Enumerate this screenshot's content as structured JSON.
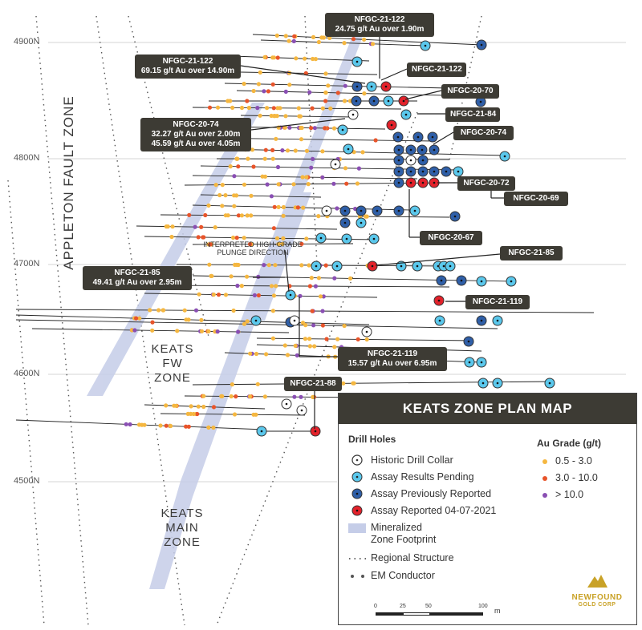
{
  "grid_labels": [
    "4900N",
    "4800N",
    "4700N",
    "4600N",
    "4500N"
  ],
  "zones": {
    "fault": "APPLETON FAULT ZONE",
    "fw": [
      "KEATS",
      "FW",
      "ZONE"
    ],
    "main": [
      "KEATS",
      "MAIN",
      "ZONE"
    ],
    "plunge": [
      "INTERPRETED HIGH-GRADE",
      "PLUNGE DIRECTION"
    ]
  },
  "callouts": [
    {
      "lines": [
        "NFGC-21-122",
        "24.75 g/t Au over 1.90m"
      ]
    },
    {
      "lines": [
        "NFGC-21-122",
        "69.15  g/t Au over 14.90m"
      ]
    },
    {
      "lines": [
        "NFGC-21-122"
      ]
    },
    {
      "lines": [
        "NFGC-20-70"
      ]
    },
    {
      "lines": [
        "NFGC-21-84"
      ]
    },
    {
      "lines": [
        "NFGC-20-74",
        "32.27 g/t Au over 2.00m",
        "45.59 g/t Au over 4.05m"
      ]
    },
    {
      "lines": [
        "NFGC-20-74"
      ]
    },
    {
      "lines": [
        "NFGC-20-72"
      ]
    },
    {
      "lines": [
        "NFGC-20-69"
      ]
    },
    {
      "lines": [
        "NFGC-20-67"
      ]
    },
    {
      "lines": [
        "NFGC-21-85"
      ]
    },
    {
      "lines": [
        "NFGC-21-85",
        "49.41 g/t Au over 2.95m"
      ]
    },
    {
      "lines": [
        "NFGC-21-119"
      ]
    },
    {
      "lines": [
        "NFGC-21-119",
        "15.57 g/t Au over 6.95m"
      ]
    },
    {
      "lines": [
        "NFGC-21-88"
      ]
    }
  ],
  "legend": {
    "title": "KEATS ZONE PLAN MAP",
    "drill_holes_heading": "Drill Holes",
    "grade_heading": "Au Grade (g/t)",
    "drill_items": [
      "Historic Drill Collar",
      "Assay Results Pending",
      "Assay Previously Reported",
      "Assay Reported 04-07-2021"
    ],
    "footprint": [
      "Mineralized",
      "Zone Footprint"
    ],
    "regional": "Regional Structure",
    "em": "EM Conductor",
    "grades": [
      "0.5 - 3.0",
      "3.0 - 10.0",
      "> 10.0"
    ],
    "scale_ticks": [
      "0",
      "25",
      "50",
      "100"
    ],
    "scale_unit": "m",
    "logo": [
      "NEWFOUND",
      "GOLD CORP"
    ]
  },
  "colors": {
    "callout_bg": "#3d3b34",
    "footprint": "#c5cde8",
    "pending": "#5bc8ec",
    "previous": "#2f5fa8",
    "reported": "#e3222b",
    "grade_low": "#f5b740",
    "grade_mid": "#e8542a",
    "grade_high": "#8a4fb3",
    "logo_gold": "#c9a227"
  }
}
